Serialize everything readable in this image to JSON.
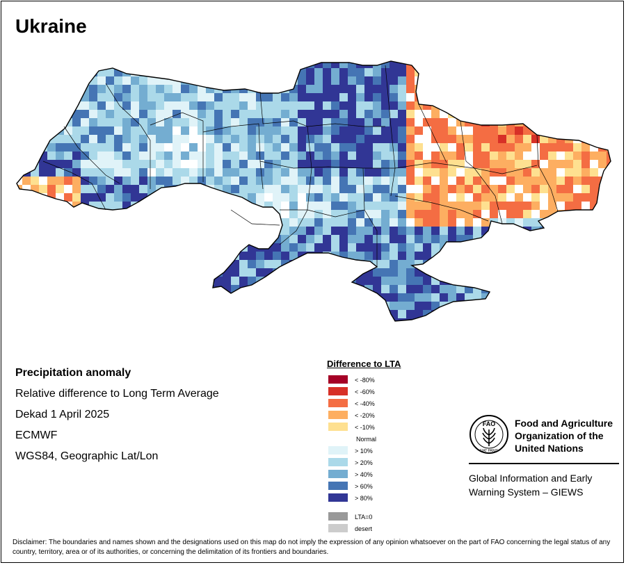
{
  "title": "Ukraine",
  "info": {
    "heading": "Precipitation anomaly",
    "line1": "Relative difference to Long Term Average",
    "line2": "Dekad 1 April 2025",
    "line3": "ECMWF",
    "line4": "WGS84, Geographic Lat/Lon"
  },
  "legend": {
    "title": "Difference to LTA",
    "items": [
      {
        "label": "< -80%",
        "color": "#a50026"
      },
      {
        "label": "< -60%",
        "color": "#d73027"
      },
      {
        "label": "< -40%",
        "color": "#f46d43"
      },
      {
        "label": "< -20%",
        "color": "#fdae61"
      },
      {
        "label": "< -10%",
        "color": "#fee090"
      },
      {
        "label": "Normal",
        "color": "#ffffff"
      },
      {
        "label": "> 10%",
        "color": "#e0f3f8"
      },
      {
        "label": "> 20%",
        "color": "#abd9e9"
      },
      {
        "label": "> 40%",
        "color": "#74add1"
      },
      {
        "label": "> 60%",
        "color": "#4575b4"
      },
      {
        "label": "> 80%",
        "color": "#313695"
      }
    ],
    "extra": [
      {
        "label": "LTA=0",
        "color": "#999999"
      },
      {
        "label": "desert",
        "color": "#cccccc"
      }
    ]
  },
  "fao": {
    "org_line1": "Food and Agriculture",
    "org_line2": "Organization of the",
    "org_line3": "United Nations",
    "giews_line1": "Global Information and Early",
    "giews_line2": "Warning System – GIEWS",
    "logo_text": "FAO",
    "logo_motto": "FIAT PANIS"
  },
  "disclaimer": "Disclaimer: The boundaries and names shown and the designations used on this map do not imply the expression of any opinion whatsoever on the part of FAO concerning the legal status of any country, territory, area or of its authorities, or concerning the delimitation of its frontiers and boundaries.",
  "map_regions": {
    "west_tip": "dry",
    "north_center": "very wet",
    "east": "dry",
    "south": "very wet",
    "crimea": "very wet"
  }
}
